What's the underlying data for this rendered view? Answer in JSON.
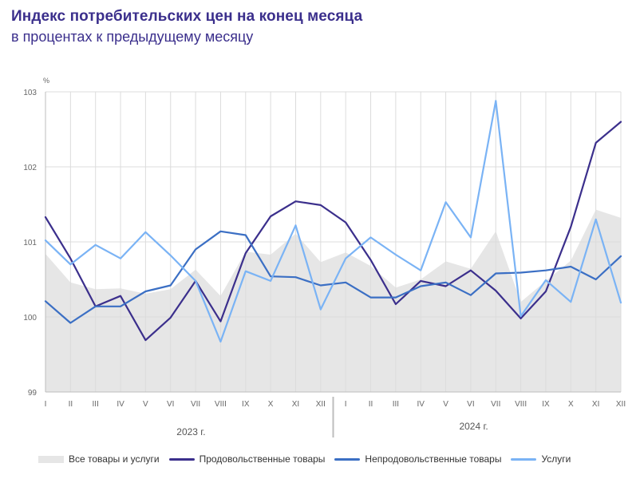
{
  "title": "Индекс потребительских цен на конец месяца",
  "subtitle": "в процентах к предыдущему месяцу",
  "chart_data": {
    "type": "line",
    "yunit": "%",
    "ylim": [
      99,
      103
    ],
    "yticks": [
      "99",
      "100",
      "101",
      "102",
      "103"
    ],
    "categories": [
      "I",
      "II",
      "III",
      "IV",
      "V",
      "VI",
      "VII",
      "VIII",
      "IX",
      "X",
      "XI",
      "XII",
      "I",
      "II",
      "III",
      "IV",
      "V",
      "VI",
      "VII",
      "VIII",
      "IX",
      "X",
      "XI",
      "XII"
    ],
    "years": [
      "2023 г.",
      "2024 г."
    ],
    "series": [
      {
        "name": "Все товары и услуги",
        "kind": "area",
        "color": "#e6e6e6",
        "values": [
          100.84,
          100.46,
          100.37,
          100.38,
          100.31,
          100.37,
          100.63,
          100.28,
          100.87,
          100.83,
          101.11,
          100.73,
          100.86,
          100.68,
          100.39,
          100.5,
          100.74,
          100.64,
          101.14,
          100.2,
          100.48,
          100.75,
          101.43,
          101.32
        ]
      },
      {
        "name": "Продовольственные товары",
        "kind": "line",
        "color": "#3b2f8c",
        "values": [
          101.33,
          100.78,
          100.14,
          100.28,
          99.69,
          99.99,
          100.48,
          99.94,
          100.85,
          101.34,
          101.54,
          101.49,
          101.26,
          100.76,
          100.17,
          100.48,
          100.41,
          100.62,
          100.35,
          99.98,
          100.34,
          101.2,
          102.32,
          102.6
        ]
      },
      {
        "name": "Непродовольственные товары",
        "kind": "line",
        "color": "#3b6fc4",
        "values": [
          100.21,
          99.92,
          100.14,
          100.14,
          100.34,
          100.42,
          100.9,
          101.14,
          101.09,
          100.54,
          100.53,
          100.42,
          100.46,
          100.26,
          100.26,
          100.41,
          100.46,
          100.29,
          100.58,
          100.59,
          100.62,
          100.67,
          100.5,
          100.81
        ]
      },
      {
        "name": "Услуги",
        "kind": "line",
        "color": "#7ab3f5",
        "values": [
          101.02,
          100.7,
          100.96,
          100.78,
          101.13,
          100.82,
          100.48,
          99.67,
          100.61,
          100.48,
          101.22,
          100.1,
          100.78,
          101.06,
          100.83,
          100.62,
          101.53,
          101.06,
          102.88,
          100.01,
          100.49,
          100.2,
          101.3,
          100.19
        ]
      }
    ]
  }
}
